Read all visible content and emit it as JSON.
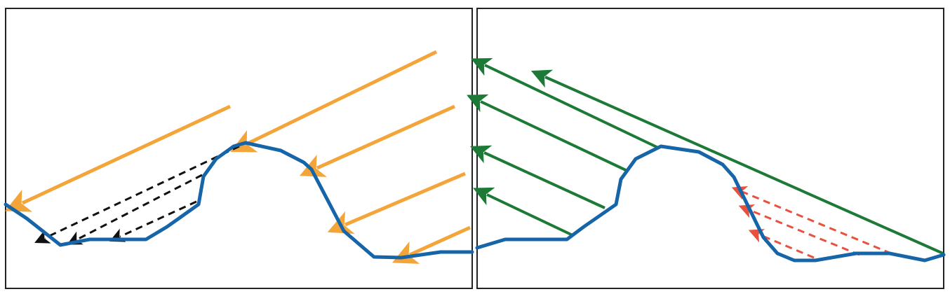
{
  "colors": {
    "background": "#ffffff",
    "frame": "#222222",
    "terrain": "#1565a8",
    "incoming_light": "#f4a53a",
    "shadowed_ray": "#111111",
    "outgoing_ray": "#1c7a36",
    "blocked_ray": "#e8513d"
  },
  "panels": [
    {
      "id": "left-panel",
      "terrain": [
        [
          0,
          280
        ],
        [
          30,
          300
        ],
        [
          78,
          338
        ],
        [
          120,
          330
        ],
        [
          200,
          330
        ],
        [
          230,
          312
        ],
        [
          275,
          280
        ],
        [
          282,
          240
        ],
        [
          300,
          215
        ],
        [
          325,
          197
        ],
        [
          342,
          192
        ],
        [
          392,
          203
        ],
        [
          425,
          220
        ],
        [
          436,
          230
        ],
        [
          482,
          318
        ],
        [
          525,
          355
        ],
        [
          564,
          356
        ],
        [
          620,
          348
        ],
        [
          665,
          348
        ]
      ],
      "rays": [
        {
          "kind": "incoming",
          "from": [
            320,
            140
          ],
          "to": [
            24,
            278
          ]
        },
        {
          "kind": "incoming",
          "from": [
            614,
            62
          ],
          "to": [
            345,
            193
          ]
        },
        {
          "kind": "incoming",
          "from": [
            640,
            140
          ],
          "to": [
            444,
            228
          ]
        },
        {
          "kind": "incoming",
          "from": [
            655,
            236
          ],
          "to": [
            484,
            309
          ]
        },
        {
          "kind": "incoming",
          "from": [
            662,
            313
          ],
          "to": [
            576,
            352
          ]
        },
        {
          "kind": "shadow",
          "from": [
            333,
            197
          ],
          "to": [
            56,
            328
          ]
        },
        {
          "kind": "shadow",
          "from": [
            280,
            238
          ],
          "to": [
            102,
            330
          ]
        },
        {
          "kind": "shadow",
          "from": [
            272,
            276
          ],
          "to": [
            163,
            326
          ]
        }
      ]
    },
    {
      "id": "right-panel",
      "terrain": [
        [
          0,
          342
        ],
        [
          40,
          330
        ],
        [
          128,
          330
        ],
        [
          152,
          312
        ],
        [
          198,
          280
        ],
        [
          205,
          244
        ],
        [
          226,
          215
        ],
        [
          262,
          197
        ],
        [
          316,
          205
        ],
        [
          350,
          223
        ],
        [
          366,
          241
        ],
        [
          408,
          327
        ],
        [
          428,
          350
        ],
        [
          452,
          360
        ],
        [
          482,
          360
        ],
        [
          540,
          350
        ],
        [
          588,
          350
        ],
        [
          638,
          360
        ],
        [
          665,
          352
        ]
      ],
      "rays": [
        {
          "kind": "outgoing",
          "from": [
            258,
            199
          ],
          "to": [
            11,
            81
          ]
        },
        {
          "kind": "outgoing",
          "from": [
            664,
            350
          ],
          "to": [
            97,
            98
          ]
        },
        {
          "kind": "outgoing",
          "from": [
            214,
            232
          ],
          "to": [
            5,
            133
          ]
        },
        {
          "kind": "outgoing",
          "from": [
            182,
            285
          ],
          "to": [
            10,
            206
          ]
        },
        {
          "kind": "outgoing",
          "from": [
            136,
            324
          ],
          "to": [
            14,
            266
          ]
        },
        {
          "kind": "blocked",
          "from": [
            590,
            350
          ],
          "to": [
            378,
            262
          ]
        },
        {
          "kind": "blocked",
          "from": [
            545,
            352
          ],
          "to": [
            388,
            288
          ]
        },
        {
          "kind": "blocked",
          "from": [
            480,
            356
          ],
          "to": [
            402,
            323
          ]
        }
      ]
    }
  ]
}
